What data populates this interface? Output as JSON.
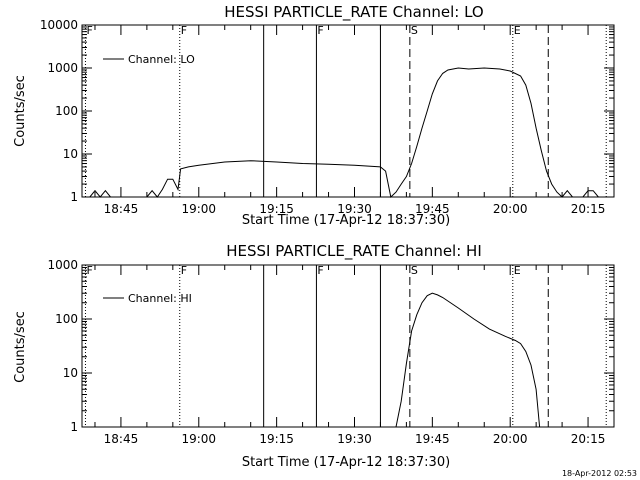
{
  "footer": {
    "timestamp": "18-Apr-2012 02:53"
  },
  "chart_data": [
    {
      "type": "line",
      "title": "HESSI PARTICLE_RATE Channel: LO",
      "xlabel": "Start Time (17-Apr-12 18:37:30)",
      "ylabel": "Counts/sec",
      "xlim": [
        "18:37:30",
        "20:20:00"
      ],
      "ylim": [
        1,
        10000
      ],
      "yscale": "log",
      "xtick_labels": [
        "18:45",
        "19:00",
        "19:15",
        "19:30",
        "19:45",
        "20:00",
        "20:15"
      ],
      "ytick_labels": [
        "1",
        "10",
        "100",
        "1000",
        "10000"
      ],
      "legend": {
        "position": "top-left",
        "entries": [
          "Channel: LO"
        ]
      },
      "markers": [
        {
          "time": "18:38:10",
          "style": "dotted",
          "label": "F"
        },
        {
          "time": "18:56:20",
          "style": "dotted",
          "label": "F"
        },
        {
          "time": "19:12:30",
          "style": "solid",
          "label": ""
        },
        {
          "time": "19:22:40",
          "style": "solid",
          "label": "F"
        },
        {
          "time": "19:35:00",
          "style": "solid",
          "label": ""
        },
        {
          "time": "19:40:40",
          "style": "dashed",
          "label": "S"
        },
        {
          "time": "20:00:30",
          "style": "dotted",
          "label": "E"
        },
        {
          "time": "20:07:20",
          "style": "dashed",
          "label": ""
        },
        {
          "time": "20:18:30",
          "style": "dotted",
          "label": ""
        }
      ],
      "series": [
        {
          "name": "Channel: LO",
          "points": [
            [
              "18:39:00",
              1
            ],
            [
              "18:40:00",
              1.4
            ],
            [
              "18:41:00",
              1
            ],
            [
              "18:42:00",
              1.4
            ],
            [
              "18:43:00",
              1
            ],
            [
              "18:45:00",
              1
            ],
            [
              "18:50:00",
              1
            ],
            [
              "18:51:00",
              1.4
            ],
            [
              "18:52:00",
              1
            ],
            [
              "18:53:00",
              1.5
            ],
            [
              "18:54:00",
              2.6
            ],
            [
              "18:55:00",
              2.6
            ],
            [
              "18:56:00",
              1.5
            ],
            [
              "18:56:30",
              4.5
            ],
            [
              "18:58:00",
              5
            ],
            [
              "19:00:00",
              5.5
            ],
            [
              "19:05:00",
              6.5
            ],
            [
              "19:10:00",
              7
            ],
            [
              "19:15:00",
              6.5
            ],
            [
              "19:20:00",
              6
            ],
            [
              "19:25:00",
              5.8
            ],
            [
              "19:30:00",
              5.5
            ],
            [
              "19:35:00",
              5
            ],
            [
              "19:36:00",
              4
            ],
            [
              "19:37:00",
              1
            ],
            [
              "19:38:00",
              1.3
            ],
            [
              "19:39:00",
              2
            ],
            [
              "19:40:00",
              3
            ],
            [
              "19:41:00",
              6
            ],
            [
              "19:42:00",
              15
            ],
            [
              "19:43:00",
              40
            ],
            [
              "19:44:00",
              100
            ],
            [
              "19:45:00",
              250
            ],
            [
              "19:46:00",
              500
            ],
            [
              "19:47:00",
              750
            ],
            [
              "19:48:00",
              900
            ],
            [
              "19:50:00",
              1000
            ],
            [
              "19:52:00",
              950
            ],
            [
              "19:55:00",
              1000
            ],
            [
              "19:58:00",
              950
            ],
            [
              "20:00:00",
              850
            ],
            [
              "20:02:00",
              650
            ],
            [
              "20:03:00",
              400
            ],
            [
              "20:04:00",
              150
            ],
            [
              "20:05:00",
              40
            ],
            [
              "20:06:00",
              12
            ],
            [
              "20:07:00",
              4
            ],
            [
              "20:08:00",
              2
            ],
            [
              "20:09:00",
              1.3
            ],
            [
              "20:10:00",
              1
            ],
            [
              "20:11:00",
              1.4
            ],
            [
              "20:12:00",
              1
            ],
            [
              "20:14:00",
              1
            ],
            [
              "20:15:00",
              1.4
            ],
            [
              "20:16:00",
              1.4
            ],
            [
              "20:17:00",
              1
            ]
          ]
        }
      ]
    },
    {
      "type": "line",
      "title": "HESSI PARTICLE_RATE Channel: HI",
      "xlabel": "Start Time (17-Apr-12 18:37:30)",
      "ylabel": "Counts/sec",
      "xlim": [
        "18:37:30",
        "20:20:00"
      ],
      "ylim": [
        1,
        1000
      ],
      "yscale": "log",
      "xtick_labels": [
        "18:45",
        "19:00",
        "19:15",
        "19:30",
        "19:45",
        "20:00",
        "20:15"
      ],
      "ytick_labels": [
        "1",
        "10",
        "100",
        "1000"
      ],
      "legend": {
        "position": "top-left",
        "entries": [
          "Channel: HI"
        ]
      },
      "markers": [
        {
          "time": "18:38:10",
          "style": "dotted",
          "label": "F"
        },
        {
          "time": "18:56:20",
          "style": "dotted",
          "label": "F"
        },
        {
          "time": "19:12:30",
          "style": "solid",
          "label": ""
        },
        {
          "time": "19:22:40",
          "style": "solid",
          "label": "F"
        },
        {
          "time": "19:35:00",
          "style": "solid",
          "label": ""
        },
        {
          "time": "19:40:40",
          "style": "dashed",
          "label": "S"
        },
        {
          "time": "20:00:30",
          "style": "dotted",
          "label": "E"
        },
        {
          "time": "20:07:20",
          "style": "dashed",
          "label": ""
        },
        {
          "time": "20:18:30",
          "style": "dotted",
          "label": ""
        }
      ],
      "series": [
        {
          "name": "Channel: HI",
          "points": [
            [
              "19:38:00",
              1
            ],
            [
              "19:39:00",
              3
            ],
            [
              "19:40:00",
              15
            ],
            [
              "19:41:00",
              60
            ],
            [
              "19:42:00",
              120
            ],
            [
              "19:43:00",
              200
            ],
            [
              "19:44:00",
              270
            ],
            [
              "19:45:00",
              300
            ],
            [
              "19:46:00",
              280
            ],
            [
              "19:47:00",
              250
            ],
            [
              "19:50:00",
              160
            ],
            [
              "19:53:00",
              100
            ],
            [
              "19:56:00",
              65
            ],
            [
              "19:59:00",
              48
            ],
            [
              "20:01:00",
              40
            ],
            [
              "20:02:00",
              35
            ],
            [
              "20:03:00",
              25
            ],
            [
              "20:04:00",
              14
            ],
            [
              "20:05:00",
              5
            ],
            [
              "20:05:40",
              1
            ]
          ]
        }
      ]
    }
  ]
}
